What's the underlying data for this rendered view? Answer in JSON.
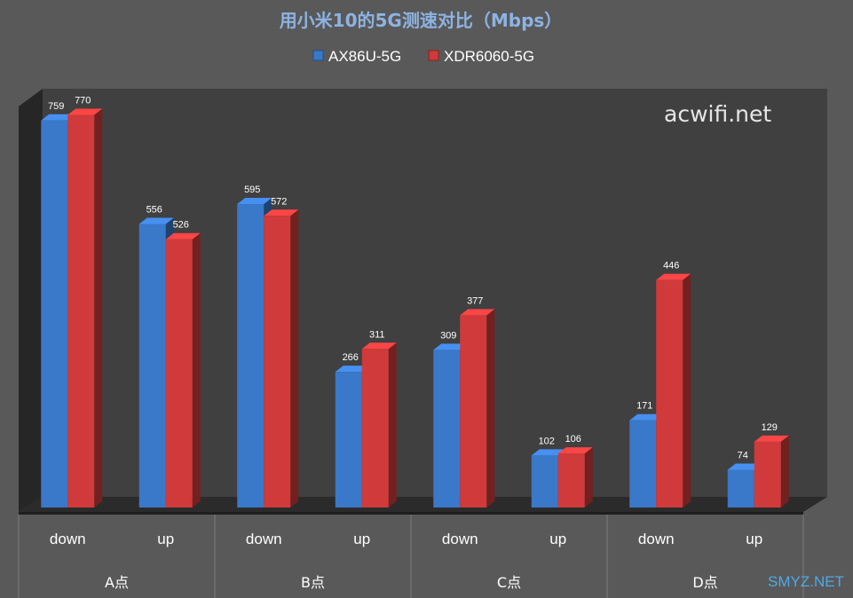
{
  "chart_data": {
    "type": "bar",
    "title": "用小米10的5G测速对比（Mbps）",
    "categories": [
      "down",
      "up",
      "down",
      "up",
      "down",
      "up",
      "down",
      "up"
    ],
    "groups": [
      "A点",
      "B点",
      "C点",
      "D点"
    ],
    "series": [
      {
        "name": "AX86U-5G",
        "color": "#3a78c9",
        "values": [
          759,
          556,
          595,
          266,
          309,
          102,
          171,
          74
        ]
      },
      {
        "name": "XDR6060-5G",
        "color": "#d03a3a",
        "values": [
          770,
          526,
          572,
          311,
          377,
          106,
          446,
          129
        ]
      }
    ],
    "legend_position": "top",
    "ylim": [
      0,
      800
    ],
    "grid": false,
    "style": "3d"
  },
  "watermarks": {
    "top": "acwifi.net",
    "bottom": "SMYZ.NET"
  }
}
